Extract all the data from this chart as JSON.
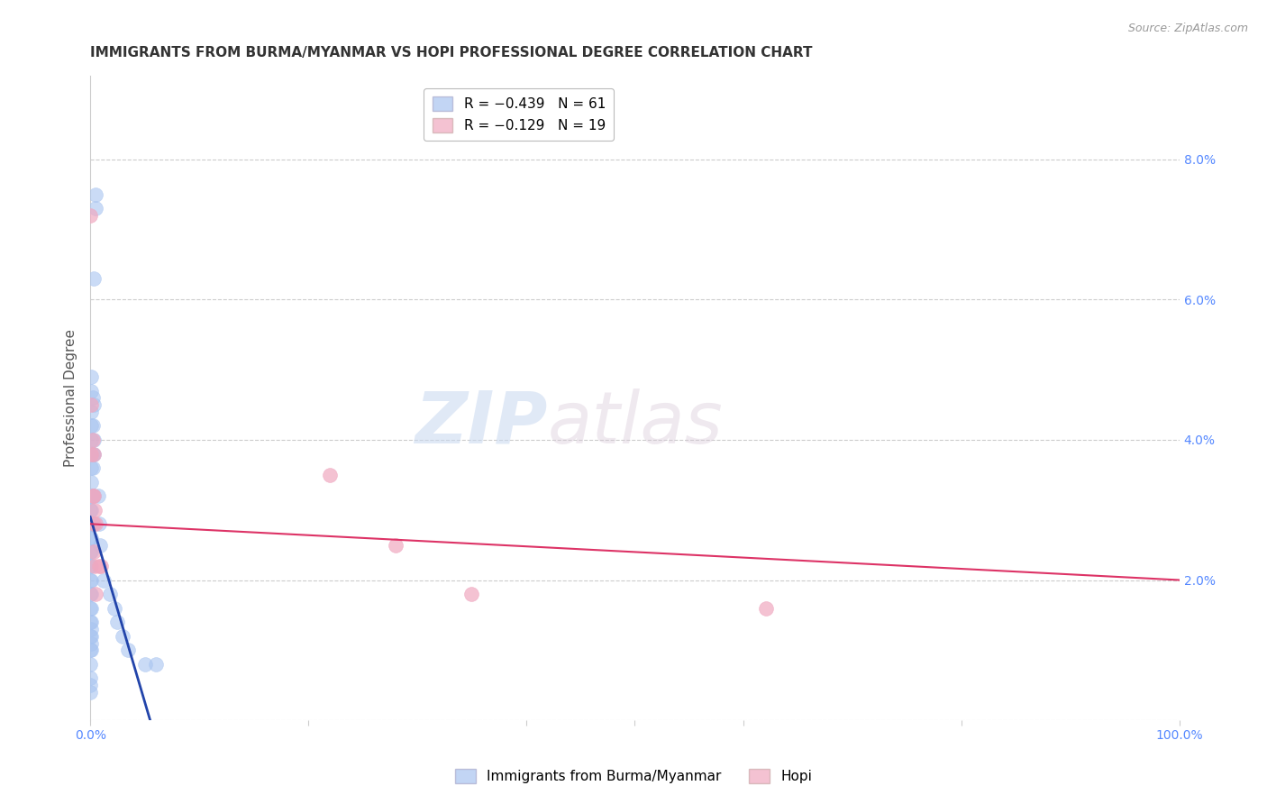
{
  "title": "IMMIGRANTS FROM BURMA/MYANMAR VS HOPI PROFESSIONAL DEGREE CORRELATION CHART",
  "source": "Source: ZipAtlas.com",
  "ylabel": "Professional Degree",
  "legend_blue_r": "R = −0.439",
  "legend_blue_n": "N = 61",
  "legend_pink_r": "R = −0.129",
  "legend_pink_n": "N = 19",
  "blue_color": "#a8c4f0",
  "pink_color": "#f0a8c0",
  "blue_line_color": "#2244aa",
  "pink_line_color": "#dd3366",
  "watermark_zip": "ZIP",
  "watermark_atlas": "atlas",
  "right_yticks": [
    0.0,
    0.02,
    0.04,
    0.06,
    0.08
  ],
  "right_yticklabels": [
    "",
    "2.0%",
    "4.0%",
    "6.0%",
    "8.0%"
  ],
  "axis_color": "#5588ff",
  "xlim": [
    0.0,
    1.0
  ],
  "ylim": [
    0.0,
    0.092
  ],
  "blue_scatter_x": [
    0.005,
    0.005,
    0.003,
    0.003,
    0.003,
    0.003,
    0.003,
    0.002,
    0.002,
    0.002,
    0.002,
    0.002,
    0.002,
    0.001,
    0.001,
    0.001,
    0.001,
    0.001,
    0.001,
    0.001,
    0.001,
    0.001,
    0.001,
    0.001,
    0.001,
    0.001,
    0.001,
    0.001,
    0.001,
    0.001,
    0.001,
    0.001,
    0.001,
    0.001,
    0.001,
    0.0,
    0.0,
    0.0,
    0.0,
    0.0,
    0.0,
    0.0,
    0.0,
    0.0,
    0.0,
    0.0,
    0.0,
    0.0,
    0.0,
    0.0,
    0.007,
    0.008,
    0.009,
    0.012,
    0.018,
    0.022,
    0.025,
    0.03,
    0.035,
    0.05,
    0.06
  ],
  "blue_scatter_y": [
    0.075,
    0.073,
    0.063,
    0.045,
    0.04,
    0.038,
    0.032,
    0.046,
    0.042,
    0.038,
    0.036,
    0.032,
    0.028,
    0.049,
    0.047,
    0.044,
    0.042,
    0.04,
    0.038,
    0.036,
    0.034,
    0.032,
    0.03,
    0.028,
    0.026,
    0.024,
    0.022,
    0.02,
    0.018,
    0.016,
    0.014,
    0.013,
    0.012,
    0.011,
    0.01,
    0.03,
    0.028,
    0.026,
    0.024,
    0.022,
    0.02,
    0.018,
    0.016,
    0.014,
    0.012,
    0.01,
    0.008,
    0.006,
    0.005,
    0.004,
    0.032,
    0.028,
    0.025,
    0.02,
    0.018,
    0.016,
    0.014,
    0.012,
    0.01,
    0.008,
    0.008
  ],
  "pink_scatter_x": [
    0.0,
    0.001,
    0.001,
    0.002,
    0.002,
    0.003,
    0.003,
    0.003,
    0.003,
    0.004,
    0.004,
    0.005,
    0.005,
    0.008,
    0.01,
    0.22,
    0.28,
    0.35,
    0.62
  ],
  "pink_scatter_y": [
    0.072,
    0.045,
    0.038,
    0.04,
    0.032,
    0.038,
    0.032,
    0.028,
    0.024,
    0.03,
    0.022,
    0.028,
    0.018,
    0.022,
    0.022,
    0.035,
    0.025,
    0.018,
    0.016
  ],
  "blue_trendline_x": [
    0.0,
    0.055
  ],
  "blue_trendline_y": [
    0.029,
    0.0
  ],
  "pink_trendline_x": [
    0.0,
    1.0
  ],
  "pink_trendline_y": [
    0.028,
    0.02
  ],
  "title_fontsize": 11,
  "scatter_size": 130
}
